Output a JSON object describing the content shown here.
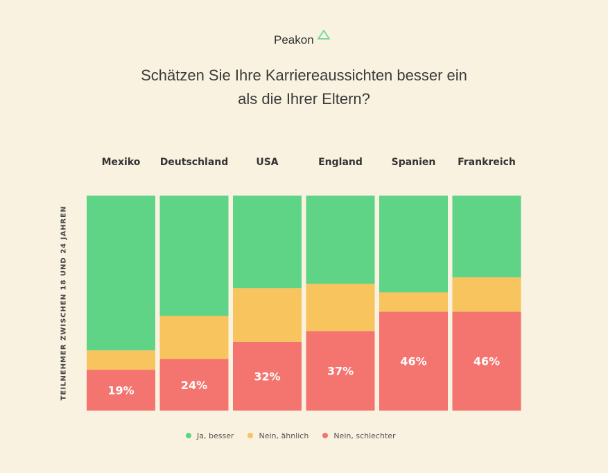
{
  "logo_text": "Peakon",
  "chart_data": {
    "type": "bar",
    "stacked": true,
    "normalized": true,
    "title": "Schätzen Sie Ihre Karriereaussichten besser ein als die Ihrer Eltern?",
    "title_lines": [
      "Schätzen Sie Ihre Karriereaussichten besser ein",
      "als die Ihrer Eltern?"
    ],
    "ylabel": "TEILNEHMER ZWISCHEN 18 UND 24 JAHREN",
    "xlabel": "",
    "ylim": [
      0,
      100
    ],
    "grid": false,
    "legend_position": "bottom",
    "categories": [
      "Mexiko",
      "Deutschland",
      "USA",
      "England",
      "Spanien",
      "Frankreich"
    ],
    "series": [
      {
        "name": "Nein, schlechter",
        "color": "#f47570",
        "values": [
          19,
          24,
          32,
          37,
          46,
          46
        ],
        "labels": [
          "19%",
          "24%",
          "32%",
          "37%",
          "46%",
          "46%"
        ]
      },
      {
        "name": "Nein, ähnlich",
        "color": "#f7c45e",
        "values": [
          9,
          20,
          25,
          22,
          9,
          16
        ]
      },
      {
        "name": "Ja, besser",
        "color": "#5fd386",
        "values": [
          72,
          56,
          43,
          41,
          45,
          38
        ]
      }
    ]
  }
}
